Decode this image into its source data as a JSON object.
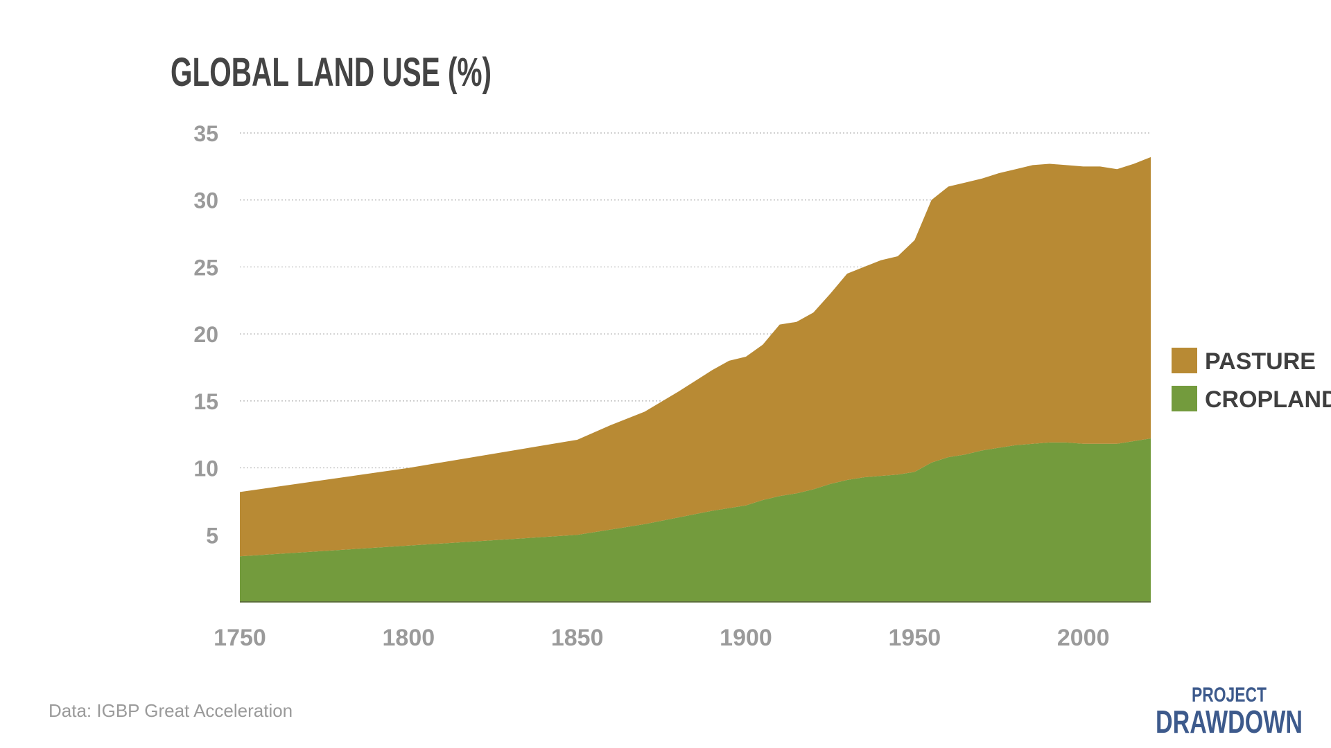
{
  "chart_data": {
    "type": "area",
    "stacked": true,
    "title": "GLOBAL LAND USE (%)",
    "xlabel": "",
    "ylabel": "",
    "xlim": [
      1750,
      2020
    ],
    "ylim": [
      0,
      35
    ],
    "x_ticks": [
      1750,
      1800,
      1850,
      1900,
      1950,
      2000
    ],
    "y_ticks": [
      5,
      10,
      15,
      20,
      25,
      30,
      35
    ],
    "grid": "horizontal dotted",
    "legend": "right",
    "x": [
      1750,
      1800,
      1850,
      1860,
      1870,
      1880,
      1890,
      1895,
      1900,
      1905,
      1910,
      1915,
      1920,
      1925,
      1930,
      1935,
      1940,
      1945,
      1950,
      1955,
      1960,
      1965,
      1970,
      1975,
      1980,
      1985,
      1990,
      1995,
      2000,
      2005,
      2010,
      2015,
      2020
    ],
    "series": [
      {
        "name": "CROPLAND",
        "color": "#739b3d",
        "values": [
          3.4,
          4.2,
          5.0,
          5.4,
          5.8,
          6.3,
          6.8,
          7.0,
          7.2,
          7.6,
          7.9,
          8.1,
          8.4,
          8.8,
          9.1,
          9.3,
          9.4,
          9.5,
          9.7,
          10.4,
          10.8,
          11.0,
          11.3,
          11.5,
          11.7,
          11.8,
          11.9,
          11.9,
          11.8,
          11.8,
          11.8,
          12.0,
          12.2
        ]
      },
      {
        "name": "PASTURE",
        "color": "#b88a34",
        "values": [
          4.8,
          5.8,
          7.1,
          7.8,
          8.4,
          9.4,
          10.5,
          11.0,
          11.1,
          11.6,
          12.8,
          12.8,
          13.2,
          14.2,
          15.4,
          15.7,
          16.1,
          16.3,
          17.3,
          19.6,
          20.2,
          20.3,
          20.3,
          20.5,
          20.6,
          20.8,
          20.8,
          20.7,
          20.7,
          20.7,
          20.5,
          20.7,
          21.0
        ]
      }
    ]
  },
  "footer": {
    "source": "Data: IGBP Great Acceleration",
    "logo_line1": "PROJECT",
    "logo_line2": "DRAWDOWN"
  }
}
